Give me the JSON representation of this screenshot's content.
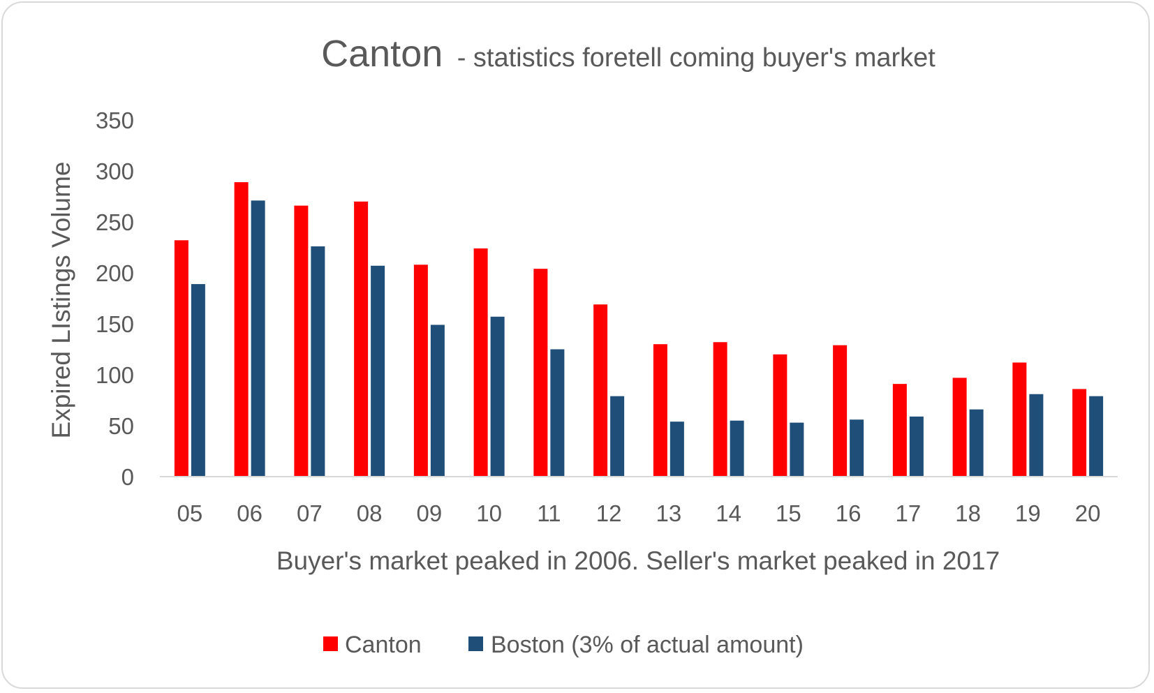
{
  "chart_data": {
    "type": "bar",
    "title": "Canton",
    "subtitle": "- statistics foretell coming buyer's market",
    "xlabel": "Buyer's market peaked in 2006. Seller's market peaked in 2017",
    "ylabel": "Expired LIstings Volume",
    "categories": [
      "05",
      "06",
      "07",
      "08",
      "09",
      "10",
      "11",
      "12",
      "13",
      "14",
      "15",
      "16",
      "17",
      "18",
      "19",
      "20"
    ],
    "series": [
      {
        "name": "Canton",
        "color": "#ff0000",
        "values": [
          232,
          289,
          266,
          270,
          208,
          224,
          204,
          169,
          130,
          132,
          120,
          129,
          91,
          97,
          112,
          86
        ]
      },
      {
        "name": "Boston (3% of actual amount)",
        "color": "#1f4e79",
        "values": [
          189,
          271,
          226,
          207,
          149,
          157,
          125,
          79,
          54,
          55,
          53,
          56,
          59,
          66,
          81,
          79
        ]
      }
    ],
    "yticks": [
      0,
      50,
      100,
      150,
      200,
      250,
      300,
      350
    ],
    "ylim": [
      0,
      350
    ],
    "grid": false,
    "legend": "bottom-center"
  }
}
